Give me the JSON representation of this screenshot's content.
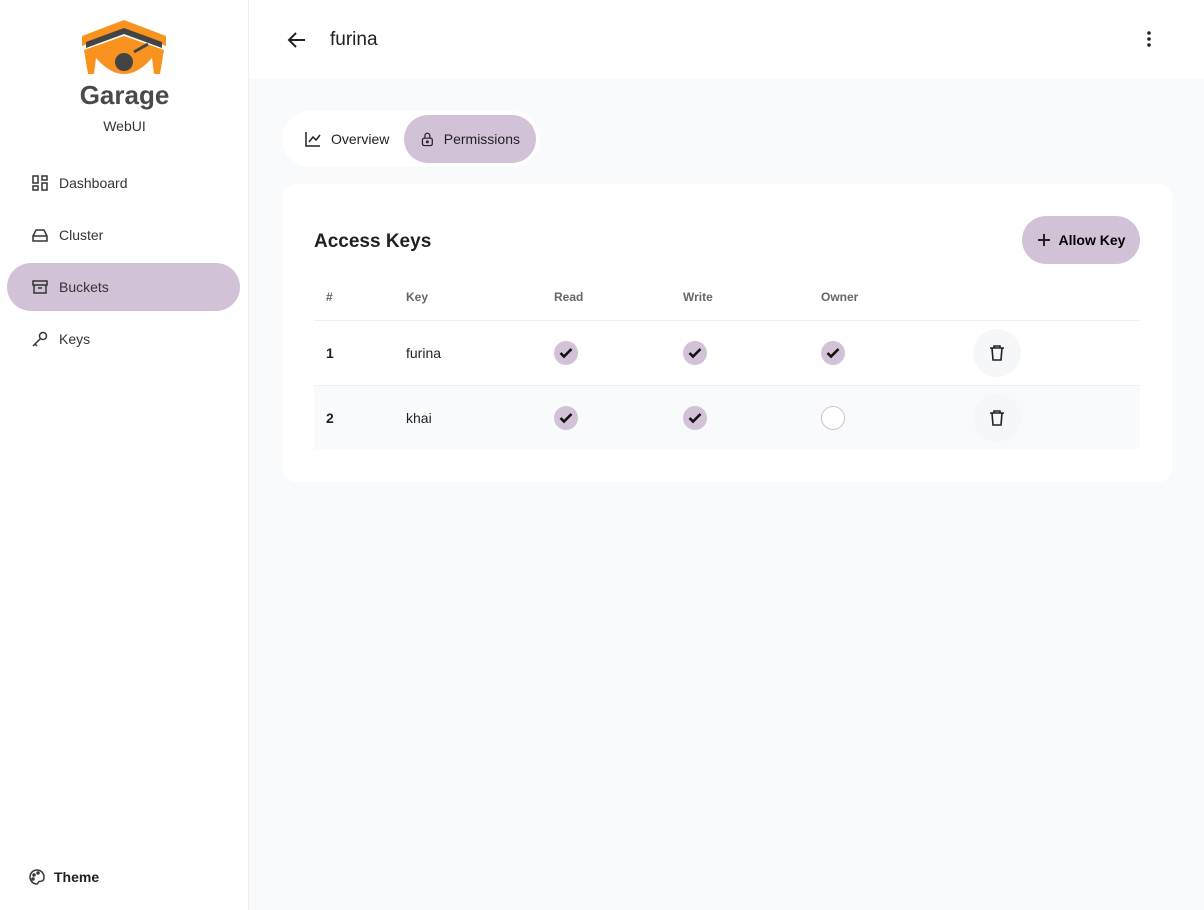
{
  "app": {
    "brand": "Garage",
    "subtitle": "WebUI",
    "accent": "#d2c2d8",
    "logo_color": "#f7931e"
  },
  "sidebar": {
    "items": [
      {
        "label": "Dashboard",
        "icon": "dashboard-icon"
      },
      {
        "label": "Cluster",
        "icon": "hard-drive-icon"
      },
      {
        "label": "Buckets",
        "icon": "archive-icon",
        "active": true
      },
      {
        "label": "Keys",
        "icon": "key-icon"
      }
    ],
    "theme_label": "Theme"
  },
  "header": {
    "title": "furina"
  },
  "tabs": [
    {
      "label": "Overview",
      "icon": "chart-line-icon"
    },
    {
      "label": "Permissions",
      "icon": "lock-icon",
      "active": true
    }
  ],
  "access": {
    "title": "Access Keys",
    "allow_label": "Allow Key",
    "columns": [
      "#",
      "Key",
      "Read",
      "Write",
      "Owner"
    ],
    "rows": [
      {
        "num": "1",
        "key": "furina",
        "read": true,
        "write": true,
        "owner": true
      },
      {
        "num": "2",
        "key": "khai",
        "read": true,
        "write": true,
        "owner": false
      }
    ]
  }
}
